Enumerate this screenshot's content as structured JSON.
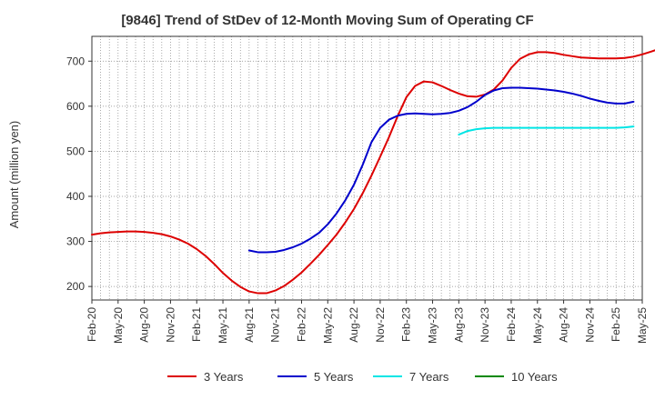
{
  "chart_data": {
    "type": "line",
    "title": "[9846]  Trend of StDev of 12-Month Moving Sum of Operating CF",
    "xlabel": "",
    "ylabel": "Amount (million yen)",
    "x_ticks": [
      "Feb-20",
      "May-20",
      "Aug-20",
      "Nov-20",
      "Feb-21",
      "May-21",
      "Aug-21",
      "Nov-21",
      "Feb-22",
      "May-22",
      "Aug-22",
      "Nov-22",
      "Feb-23",
      "May-23",
      "Aug-23",
      "Nov-23",
      "Feb-24",
      "May-24",
      "Aug-24",
      "Nov-24",
      "Feb-25",
      "May-25"
    ],
    "y_ticks": [
      200,
      300,
      400,
      500,
      600,
      700
    ],
    "ylim": [
      170,
      755
    ],
    "xlim_months": [
      "2020-02",
      "2025-05"
    ],
    "grid": true,
    "legend_position": "bottom",
    "colors": {
      "3 Years": "#dd0000",
      "5 Years": "#0000cc",
      "7 Years": "#00e5e5",
      "10 Years": "#008800"
    },
    "series": [
      {
        "name": "3 Years",
        "color": "#dd0000",
        "start": "2020-02",
        "values": [
          315,
          318,
          320,
          321,
          322,
          322,
          321,
          319,
          316,
          311,
          304,
          295,
          283,
          268,
          250,
          230,
          213,
          199,
          189,
          185,
          185,
          191,
          201,
          215,
          231,
          250,
          270,
          292,
          315,
          342,
          372,
          407,
          446,
          488,
          531,
          578,
          620,
          645,
          655,
          653,
          645,
          636,
          628,
          622,
          621,
          626,
          637,
          657,
          685,
          705,
          715,
          720,
          720,
          718,
          714,
          711,
          708,
          707,
          706,
          706,
          706,
          707,
          710,
          715,
          721,
          728,
          736
        ]
      },
      {
        "name": "5 Years",
        "color": "#0000cc",
        "start": "2021-08",
        "values": [
          280,
          276,
          276,
          277,
          281,
          287,
          295,
          306,
          319,
          338,
          362,
          391,
          426,
          470,
          520,
          552,
          570,
          579,
          583,
          584,
          583,
          582,
          583,
          585,
          590,
          598,
          610,
          625,
          635,
          640,
          641,
          641,
          640,
          639,
          637,
          635,
          632,
          628,
          623,
          617,
          612,
          608,
          606,
          606,
          610
        ]
      },
      {
        "name": "7 Years",
        "color": "#00e5e5",
        "start": "2023-08",
        "values": [
          537,
          545,
          549,
          551,
          552,
          552,
          552,
          552,
          552,
          552,
          552,
          552,
          552,
          552,
          552,
          552,
          552,
          552,
          552,
          553,
          555
        ]
      },
      {
        "name": "10 Years",
        "color": "#008800",
        "start": "2025-02",
        "values": []
      }
    ]
  }
}
